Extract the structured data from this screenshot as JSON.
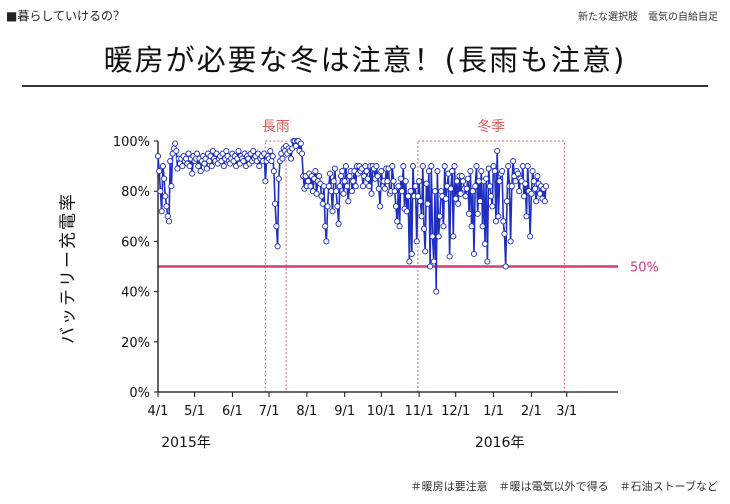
{
  "header": {
    "section_label": "■暮らしていけるの？",
    "subtitle": "新たな選択肢　電気の自給自足",
    "title": "暖房が必要な冬は注意！(長雨も注意)"
  },
  "footer": {
    "tags": "＃暖房は要注意　＃暖は電気以外で得る　＃石油ストーブなど"
  },
  "colors": {
    "line": "#1f2fbf",
    "threshold": "#d63a78",
    "highlight": "#e05a5a"
  },
  "chart_data": {
    "type": "line",
    "title": "",
    "ylabel": "バッテリー充電率",
    "xlabel": "",
    "ylim": [
      0,
      100
    ],
    "yticks": [
      0,
      20,
      40,
      60,
      80,
      100
    ],
    "ytick_labels": [
      "0%",
      "20%",
      "40%",
      "60%",
      "80%",
      "100%"
    ],
    "x_range": [
      "2015-04-01",
      "2016-04-12"
    ],
    "xticks": [
      "2015-04-01",
      "2015-05-01",
      "2015-06-01",
      "2015-07-01",
      "2015-08-01",
      "2015-09-01",
      "2015-10-01",
      "2015-11-01",
      "2015-12-01",
      "2016-01-01",
      "2016-02-01",
      "2016-03-01"
    ],
    "xtick_labels": [
      "4/1",
      "5/1",
      "6/1",
      "7/1",
      "8/1",
      "9/1",
      "10/1",
      "11/1",
      "12/1",
      "1/1",
      "2/1",
      "3/1"
    ],
    "year_labels": [
      {
        "label": "2015年",
        "date": "2015-04-24"
      },
      {
        "label": "2016年",
        "date": "2016-01-06"
      }
    ],
    "grid": false,
    "threshold": {
      "value": 50,
      "label": "50%"
    },
    "highlight_ranges": [
      {
        "label": "長雨",
        "start": "2015-06-28",
        "end": "2015-07-15"
      },
      {
        "label": "冬季",
        "start": "2015-10-31",
        "end": "2016-02-28"
      }
    ],
    "series": [
      {
        "start_date": "2015-04-01",
        "values": [
          94,
          88,
          80,
          72,
          90,
          85,
          78,
          74,
          70,
          68,
          92,
          82,
          95,
          97,
          99,
          96,
          89,
          93,
          91,
          93,
          90,
          94,
          92,
          93,
          91,
          95,
          90,
          93,
          87,
          94,
          92,
          93,
          95,
          90,
          93,
          88,
          92,
          94,
          91,
          93,
          89,
          95,
          92,
          94,
          90,
          96,
          93,
          92,
          95,
          91,
          93,
          94,
          92,
          95,
          90,
          93,
          96,
          94,
          92,
          91,
          93,
          95,
          92,
          94,
          90,
          93,
          96,
          91,
          94,
          93,
          92,
          95,
          90,
          94,
          93,
          91,
          95,
          92,
          96,
          93,
          94,
          92,
          95,
          90,
          93,
          94,
          92,
          95,
          84,
          92,
          94,
          93,
          96,
          92,
          94,
          88,
          75,
          66,
          58,
          85,
          92,
          95,
          93,
          97,
          96,
          98,
          95,
          97,
          96,
          93,
          97,
          100,
          100,
          98,
          100,
          100,
          96,
          99,
          95,
          86,
          81,
          86,
          82,
          84,
          87,
          82,
          86,
          80,
          85,
          88,
          79,
          84,
          86,
          83,
          78,
          75,
          82,
          66,
          60,
          74,
          82,
          87,
          80,
          72,
          84,
          89,
          80,
          74,
          67,
          82,
          86,
          88,
          79,
          84,
          90,
          82,
          76,
          86,
          88,
          80,
          84,
          88,
          82,
          90,
          87,
          90,
          88,
          89,
          82,
          86,
          90,
          88,
          85,
          82,
          90,
          79,
          90,
          89,
          85,
          90,
          86,
          81,
          74,
          88,
          84,
          84,
          81,
          89,
          84,
          89,
          79,
          80,
          90,
          84,
          80,
          74,
          68,
          82,
          66,
          85,
          80,
          90,
          73,
          84,
          72,
          78,
          52,
          80,
          55,
          90,
          78,
          82,
          60,
          78,
          84,
          76,
          70,
          90,
          65,
          56,
          83,
          75,
          88,
          50,
          90,
          62,
          52,
          80,
          40,
          88,
          62,
          70,
          80,
          78,
          66,
          90,
          77,
          82,
          87,
          54,
          81,
          88,
          62,
          90,
          77,
          84,
          75,
          86,
          79,
          86,
          84,
          81,
          78,
          81,
          85,
          71,
          88,
          66,
          80,
          55,
          82,
          90,
          71,
          84,
          76,
          88,
          66,
          84,
          59,
          85,
          52,
          89,
          82,
          78,
          74,
          90,
          88,
          68,
          96,
          70,
          84,
          87,
          88,
          68,
          63,
          50,
          76,
          90,
          82,
          60,
          82,
          92,
          86,
          84,
          88,
          87,
          80,
          85,
          84,
          90,
          78,
          83,
          70,
          90,
          80,
          62,
          79,
          88,
          84,
          81,
          76,
          86,
          83,
          79,
          82,
          77,
          81,
          76,
          82
        ]
      }
    ]
  }
}
